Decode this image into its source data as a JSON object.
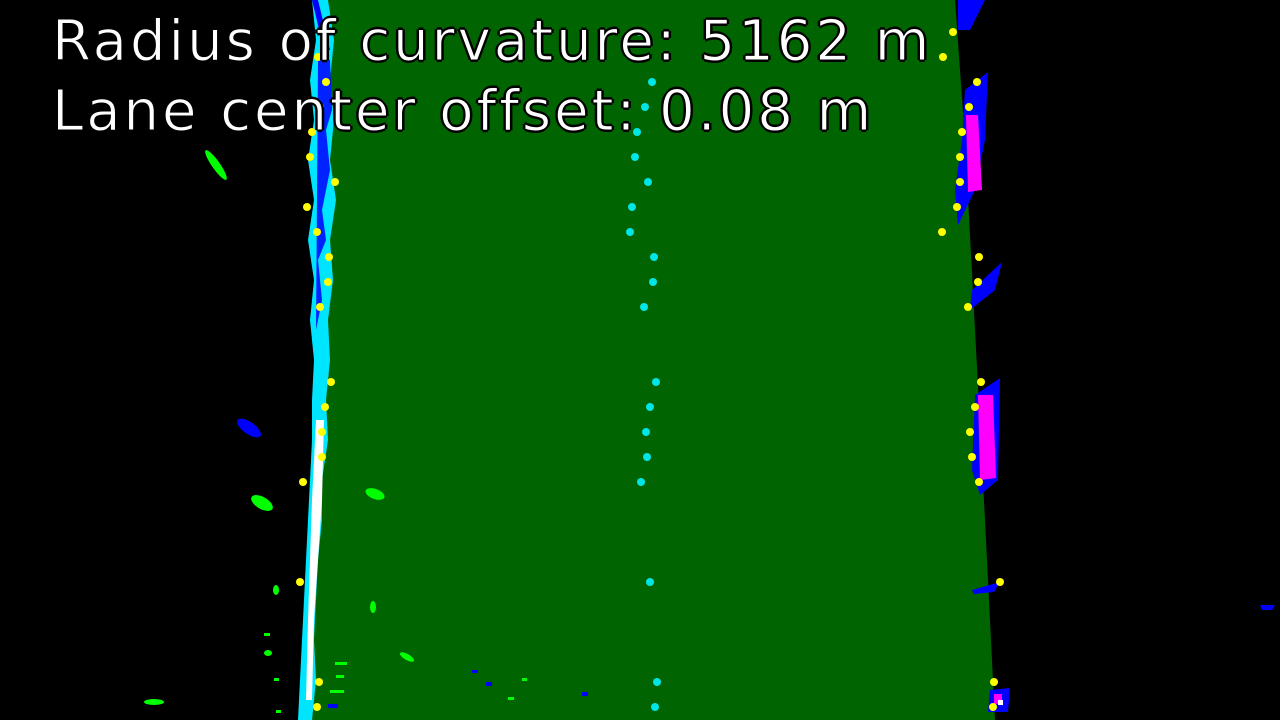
{
  "overlay": {
    "radius_label": "Radius of curvature: 5162 m",
    "offset_label": "Lane center offset: 0.08 m"
  },
  "colors": {
    "background": "#000000",
    "lane_fill": "#006400",
    "left_lane_pixels": "#00e5ff",
    "right_lane_pixels": "#0000ff",
    "right_lane_highlight": "#ff00ff",
    "fit_points": "#ffff00",
    "center_points": "#00e5e5",
    "noise": "#00ff00",
    "text": "#ffffff"
  }
}
